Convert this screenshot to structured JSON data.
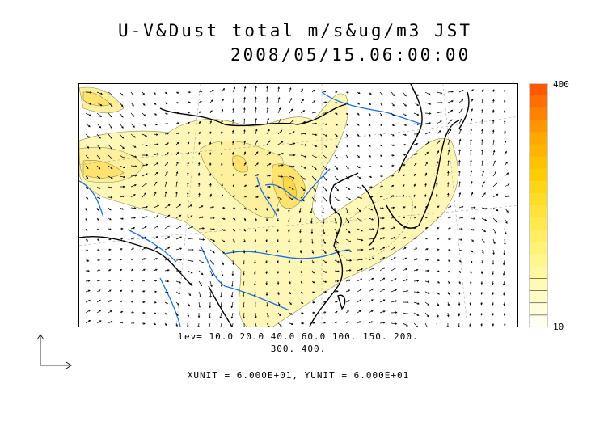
{
  "title_line1": "U-V&Dust total m/s&ug/m3 JST",
  "title_line2": "2008/05/15.06:00:00",
  "colorbar": {
    "max_label": "400",
    "min_label": "10",
    "colors": [
      "#ff5a00",
      "#ff6e00",
      "#ff8200",
      "#ff9600",
      "#ffa800",
      "#ffb400",
      "#ffc200",
      "#ffcc00",
      "#ffd614",
      "#ffdc28",
      "#ffe33c",
      "#ffe850",
      "#ffee64",
      "#fff278",
      "#fff68c",
      "#fff8a0",
      "#fffab4",
      "#fffcc8",
      "#fffedc",
      "#fffff0"
    ]
  },
  "contour_levels_line1": "lev= 10.0 20.0 40.0 60.0 100. 150. 200.",
  "contour_levels_line2": "300. 400.",
  "units_note": "XUNIT = 6.000E+01, YUNIT = 6.000E+01"
}
